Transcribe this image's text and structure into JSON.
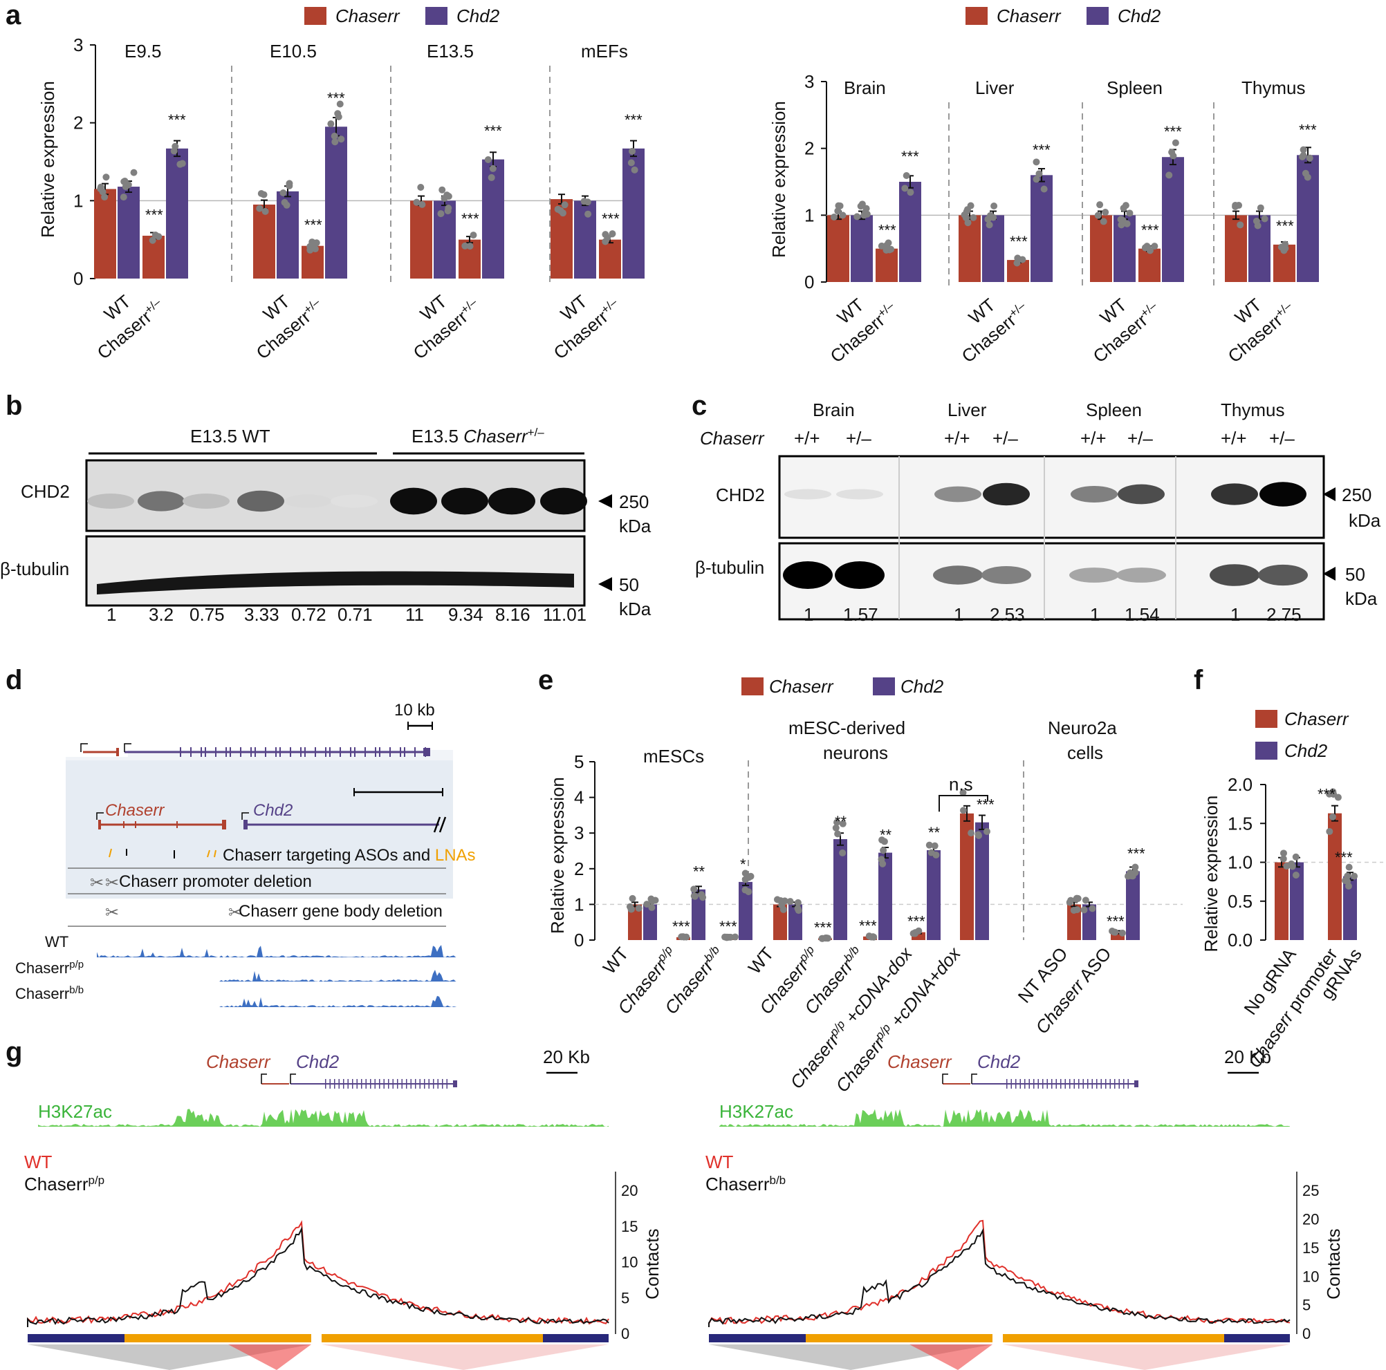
{
  "panels": {
    "a": "a",
    "b": "b",
    "c": "c",
    "d": "d",
    "e": "e",
    "f": "f",
    "g": "g"
  },
  "colors": {
    "chaserr": "#b0412e",
    "chd2": "#554287",
    "dot": "#808080",
    "h3k27ac": "#5cc84a",
    "wt_red": "#e0302a",
    "mut_black": "#111111",
    "orange": "#f0a000",
    "lna_orange": "#f0a000"
  },
  "legend": {
    "chaserr": "Chaserr",
    "chd2": "Chd2"
  },
  "a_left": {
    "ylabel": "Relative expression",
    "yticks": [
      "0",
      "1",
      "2",
      "3"
    ],
    "groups": [
      "E9.5",
      "E10.5",
      "E13.5",
      "mEFs"
    ],
    "xlabels": [
      "WT",
      "Chaserr+/–"
    ],
    "xsup_base": "Chaserr",
    "xsup": "+/–",
    "sig": "***"
  },
  "a_right": {
    "ylabel": "Relative expression",
    "yticks": [
      "0",
      "1",
      "2",
      "3"
    ],
    "groups": [
      "Brain",
      "Liver",
      "Spleen",
      "Thymus"
    ],
    "sig": "***"
  },
  "chart_data": [
    {
      "type": "bar",
      "panel": "a-left",
      "ylabel": "Relative expression",
      "ylim": [
        0,
        3
      ],
      "categories": [
        "E9.5 WT",
        "E9.5 Chaserr+/–",
        "E10.5 WT",
        "E10.5 Chaserr+/–",
        "E13.5 WT",
        "E13.5 Chaserr+/–",
        "mEFs WT",
        "mEFs Chaserr+/–"
      ],
      "series": [
        {
          "name": "Chaserr",
          "values": [
            1.15,
            0.55,
            0.95,
            0.42,
            1.0,
            0.5,
            1.02,
            0.5
          ]
        },
        {
          "name": "Chd2",
          "values": [
            1.18,
            1.67,
            1.12,
            1.95,
            1.0,
            1.53,
            1.0,
            1.67
          ]
        }
      ]
    },
    {
      "type": "bar",
      "panel": "a-right",
      "ylabel": "Relative expression",
      "ylim": [
        0,
        3
      ],
      "categories": [
        "Brain WT",
        "Brain Chaserr+/–",
        "Liver WT",
        "Liver Chaserr+/–",
        "Spleen WT",
        "Spleen Chaserr+/–",
        "Thymus WT",
        "Thymus Chaserr+/–"
      ],
      "series": [
        {
          "name": "Chaserr",
          "values": [
            1.0,
            0.5,
            1.0,
            0.33,
            1.0,
            0.5,
            1.0,
            0.56
          ]
        },
        {
          "name": "Chd2",
          "values": [
            1.0,
            1.5,
            1.0,
            1.6,
            1.0,
            1.87,
            1.0,
            1.9
          ]
        }
      ]
    },
    {
      "type": "bar",
      "panel": "e",
      "ylabel": "Relative expression",
      "ylim": [
        0,
        5
      ],
      "categories": [
        "WT",
        "Chaserr p/p",
        "Chaserr b/b",
        "WT",
        "Chaserr p/p",
        "Chaserr b/b",
        "Chaserr p/p +cDNA-dox",
        "Chaserr p/p +cDNA+dox",
        "NT ASO",
        "Chaserr ASO"
      ],
      "series": [
        {
          "name": "Chaserr",
          "values": [
            1.0,
            0.08,
            0.08,
            1.0,
            0.05,
            0.1,
            0.22,
            3.55,
            1.0,
            0.22
          ]
        },
        {
          "name": "Chd2",
          "values": [
            1.0,
            1.42,
            1.63,
            1.0,
            2.83,
            2.45,
            2.52,
            3.3,
            1.0,
            1.93
          ]
        }
      ]
    },
    {
      "type": "bar",
      "panel": "f",
      "ylabel": "Relative expression",
      "ylim": [
        0,
        2.0
      ],
      "categories": [
        "No gRNA",
        "Chaserr promoter gRNAs"
      ],
      "series": [
        {
          "name": "Chaserr",
          "values": [
            1.0,
            1.63
          ]
        },
        {
          "name": "Chd2",
          "values": [
            1.0,
            0.82
          ]
        }
      ]
    }
  ],
  "b": {
    "wt_label": "E13.5 WT",
    "mut_prefix": "E13.5 ",
    "mut_gene": "Chaserr",
    "mut_sup": "+/–",
    "chd2": "CHD2",
    "tubulin": "β-tubulin",
    "kda250": "250",
    "kda50": "50",
    "kda": "kDa",
    "quant": [
      "1",
      "3.2",
      "0.75",
      "3.33",
      "0.72",
      "0.71",
      "11",
      "9.34",
      "8.16",
      "11.01"
    ],
    "band_intensity": [
      0.25,
      0.55,
      0.25,
      0.6,
      0.15,
      0.12,
      0.95,
      0.95,
      0.95,
      0.95
    ]
  },
  "c": {
    "tissues": [
      "Brain",
      "Liver",
      "Spleen",
      "Thymus"
    ],
    "gene_label": "Chaserr",
    "genotypes": [
      "+/+",
      "+/–",
      "+/+",
      "+/–",
      "+/+",
      "+/–",
      "+/+",
      "+/–"
    ],
    "chd2": "CHD2",
    "tubulin": "β-tubulin",
    "kda250": "250",
    "kda50": "50",
    "kda": "kDa",
    "quant": [
      "1",
      "1.57",
      "1",
      "2.53",
      "1",
      "1.54",
      "1",
      "2.75"
    ],
    "chd2_intensity": [
      0.12,
      0.12,
      0.45,
      0.85,
      0.5,
      0.7,
      0.8,
      0.98
    ],
    "tub_intensity": [
      1.0,
      1.0,
      0.55,
      0.5,
      0.35,
      0.35,
      0.7,
      0.65
    ]
  },
  "d": {
    "scale_top": "10 kb",
    "chaserr": "Chaserr",
    "chd2": "Chd2",
    "aso_text": "Chaserr targeting ASOs and ",
    "lna_text": "LNAs",
    "promoter_del": "Chaserr promoter deletion",
    "body_del": "Chaserr gene body deletion",
    "track_wt": "WT",
    "track_pp_base": "Chaserr",
    "track_pp_sup": "p/p",
    "track_bb_base": "Chaserr",
    "track_bb_sup": "b/b"
  },
  "e": {
    "groups": [
      "mESCs",
      "mESC-derived",
      "neurons",
      "Neuro2a",
      "cells"
    ],
    "yticks": [
      "0",
      "1",
      "2",
      "3",
      "4",
      "5"
    ],
    "ylabel": "Relative expression",
    "ns": "n.s",
    "xlabels": [
      "WT",
      "Chaserr",
      "Chaserr",
      "WT",
      "Chaserr",
      "Chaserr",
      "Chaserr",
      "Chaserr",
      "NT ASO",
      "Chaserr ASO"
    ],
    "xsups": [
      "",
      "p/p",
      "b/b",
      "",
      "p/p",
      "b/b",
      "p/p",
      "p/p",
      "",
      ""
    ],
    "xsuffix": [
      "",
      "",
      "",
      "",
      "",
      "",
      "+cDNA-dox",
      "+cDNA+dox",
      "",
      ""
    ],
    "sig_chaserr": [
      "",
      "***",
      "***",
      "",
      "***",
      "***",
      "***",
      "",
      "",
      "***"
    ],
    "sig_chd2": [
      "",
      "**",
      "*",
      "",
      "**",
      "**",
      "**",
      "***",
      "",
      "***"
    ]
  },
  "f": {
    "yticks": [
      "0.0",
      "0.5",
      "1.0",
      "1.5",
      "2.0"
    ],
    "ylabel": "Relative expression",
    "xl1": "No gRNA",
    "xl2a": "Chaserr",
    "xl2b": " promoter",
    "xl2c": "gRNAs",
    "sig1": "***",
    "sig2": "***"
  },
  "g": {
    "chaserr": "Chaserr",
    "chd2": "Chd2",
    "scale": "20 Kb",
    "h3k27ac": "H3K27ac",
    "wt": "WT",
    "left_mut_base": "Chaserr",
    "left_mut_sup": "p/p",
    "right_mut_base": "Chaserr",
    "right_mut_sup": "b/b",
    "contacts": "Contacts",
    "left_ticks": [
      "0",
      "5",
      "10",
      "15",
      "20"
    ],
    "right_ticks": [
      "0",
      "5",
      "10",
      "15",
      "20",
      "25"
    ]
  }
}
